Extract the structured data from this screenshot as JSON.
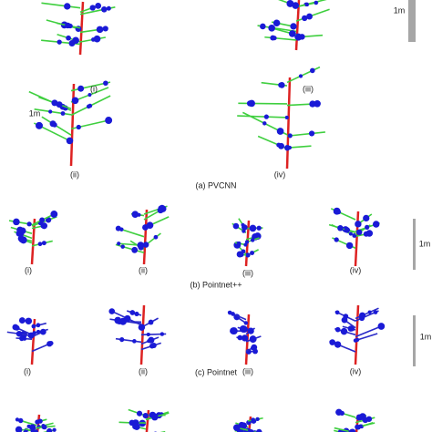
{
  "sections": [
    {
      "caption": "(a) PVCNN",
      "labels": [
        "(i)",
        "(ii)",
        "(iii)",
        "(iv)"
      ],
      "scales": [
        "1m",
        "1m"
      ]
    },
    {
      "caption": "(b) Pointnet++",
      "labels": [
        "(i)",
        "(ii)",
        "(iii)",
        "(iv)"
      ],
      "scales": [
        "1m"
      ]
    },
    {
      "caption": "(c) Pointnet",
      "labels": [
        "(i)",
        "(ii)",
        "(iii)",
        "(iv)"
      ],
      "scales": [
        "1m"
      ]
    }
  ]
}
